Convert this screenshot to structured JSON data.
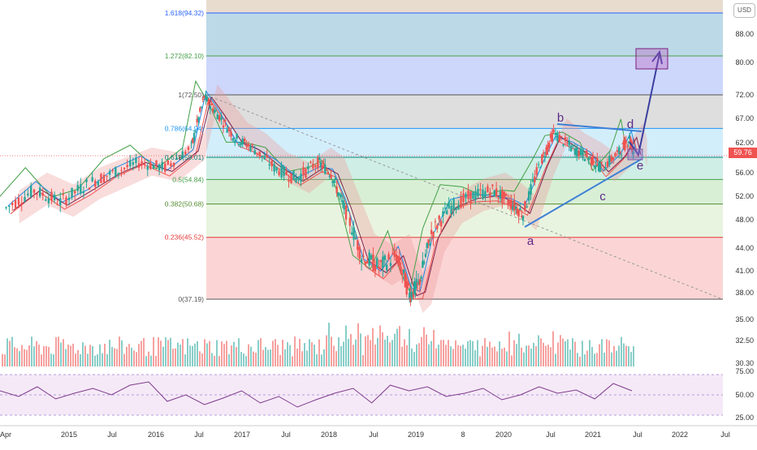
{
  "ui": {
    "currency": "USD",
    "last_price": "59.76"
  },
  "chart_data": {
    "type": "candlestick",
    "x_ticks": [
      "Apr",
      "2015",
      "Jul",
      "2016",
      "Jul",
      "2017",
      "Jul",
      "2018",
      "Jul",
      "2019",
      "8",
      "2020",
      "Jul",
      "2021",
      "Jul",
      "2022",
      "Jul"
    ],
    "price_ticks": [
      "88.00",
      "80.00",
      "72.00",
      "67.00",
      "62.00",
      "56.00",
      "52.00",
      "48.00",
      "44.00",
      "41.00",
      "38.00",
      "35.00",
      "32.50",
      "30.30"
    ],
    "rsi_ticks": [
      "75.00",
      "50.00",
      "25.00"
    ],
    "fib_levels": [
      {
        "label": "1.618(94.32)",
        "value": 94.32,
        "color": "#2962ff"
      },
      {
        "label": "1.272(82.10)",
        "value": 82.1,
        "color": "#43a047"
      },
      {
        "label": "1(72.50)",
        "value": 72.5,
        "color": "#555555"
      },
      {
        "label": "0.786(64.94)",
        "value": 64.94,
        "color": "#2196f3"
      },
      {
        "label": "0.618(59.01)",
        "value": 59.01,
        "color": "#00897b"
      },
      {
        "label": "0.5(54.84)",
        "value": 54.84,
        "color": "#43a047"
      },
      {
        "label": "0.382(50.68)",
        "value": 50.68,
        "color": "#558b2f"
      },
      {
        "label": "0.236(45.52)",
        "value": 45.52,
        "color": "#e53935"
      },
      {
        "label": "0(37.19)",
        "value": 37.19,
        "color": "#555555"
      }
    ],
    "waves": [
      "a",
      "b",
      "c",
      "d",
      "e"
    ],
    "price_series": [
      {
        "t": 2014.28,
        "v": 50
      },
      {
        "t": 2014.6,
        "v": 53
      },
      {
        "t": 2014.9,
        "v": 51
      },
      {
        "t": 2015.2,
        "v": 54
      },
      {
        "t": 2015.5,
        "v": 56
      },
      {
        "t": 2015.8,
        "v": 58
      },
      {
        "t": 2016.1,
        "v": 57
      },
      {
        "t": 2016.4,
        "v": 61
      },
      {
        "t": 2016.55,
        "v": 72
      },
      {
        "t": 2016.7,
        "v": 68
      },
      {
        "t": 2016.9,
        "v": 63
      },
      {
        "t": 2017.1,
        "v": 61
      },
      {
        "t": 2017.35,
        "v": 57
      },
      {
        "t": 2017.6,
        "v": 55
      },
      {
        "t": 2017.85,
        "v": 58
      },
      {
        "t": 2018.0,
        "v": 56
      },
      {
        "t": 2018.15,
        "v": 50
      },
      {
        "t": 2018.35,
        "v": 43
      },
      {
        "t": 2018.55,
        "v": 41.5
      },
      {
        "t": 2018.75,
        "v": 43
      },
      {
        "t": 2018.9,
        "v": 37.8
      },
      {
        "t": 2019.0,
        "v": 39
      },
      {
        "t": 2019.15,
        "v": 46
      },
      {
        "t": 2019.35,
        "v": 50
      },
      {
        "t": 2019.6,
        "v": 52
      },
      {
        "t": 2019.85,
        "v": 53
      },
      {
        "t": 2020.05,
        "v": 51
      },
      {
        "t": 2020.2,
        "v": 49
      },
      {
        "t": 2020.4,
        "v": 58
      },
      {
        "t": 2020.55,
        "v": 64
      },
      {
        "t": 2020.75,
        "v": 61
      },
      {
        "t": 2020.95,
        "v": 59
      },
      {
        "t": 2021.1,
        "v": 57
      },
      {
        "t": 2021.3,
        "v": 60
      },
      {
        "t": 2021.42,
        "v": 63
      },
      {
        "t": 2021.47,
        "v": 59.76
      }
    ],
    "rsi_series": [
      55,
      48,
      60,
      45,
      52,
      58,
      50,
      62,
      66,
      42,
      50,
      38,
      46,
      55,
      40,
      48,
      35,
      44,
      52,
      58,
      40,
      62,
      55,
      60,
      48,
      52,
      58,
      44,
      50,
      60,
      52,
      56,
      45,
      64,
      55
    ]
  }
}
